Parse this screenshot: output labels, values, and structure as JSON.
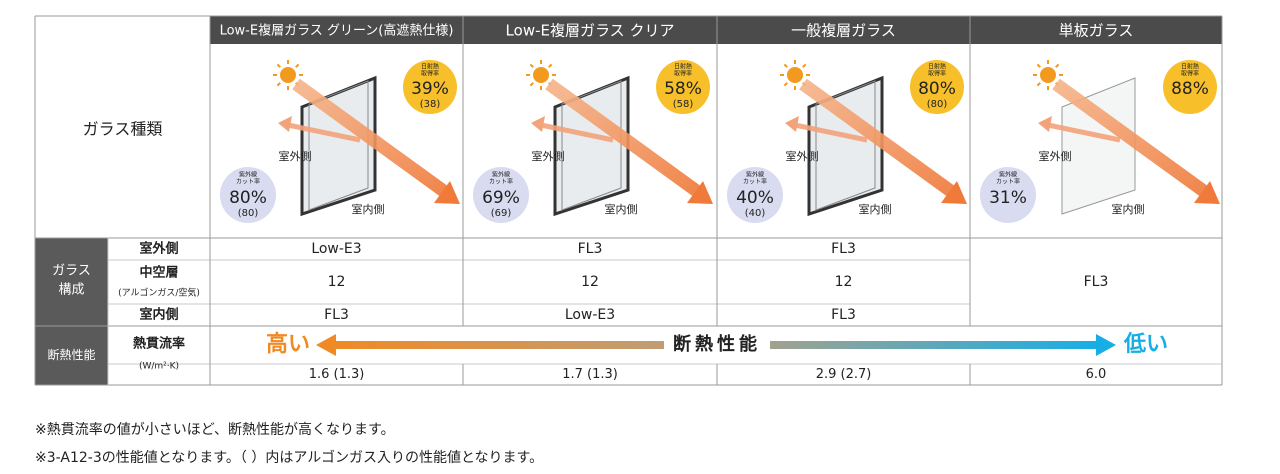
{
  "header": {
    "columns": [
      "Low-E複層ガラス グリーン(高遮熱仕様)",
      "Low-E複層ガラス クリア",
      "一般複層ガラス",
      "単板ガラス"
    ]
  },
  "glass_type": {
    "label": "ガラス種類",
    "illustrations": [
      {
        "solar_label": [
          "日射熱",
          "取得率"
        ],
        "solar": "39%",
        "solar_sub": "(38)",
        "uv_label": [
          "紫外線",
          "カット率"
        ],
        "uv": "80%",
        "uv_sub": "(80)",
        "outside": "室外側",
        "inside": "室内側"
      },
      {
        "solar_label": [
          "日射熱",
          "取得率"
        ],
        "solar": "58%",
        "solar_sub": "(58)",
        "uv_label": [
          "紫外線",
          "カット率"
        ],
        "uv": "69%",
        "uv_sub": "(69)",
        "outside": "室外側",
        "inside": "室内側"
      },
      {
        "solar_label": [
          "日射熱",
          "取得率"
        ],
        "solar": "80%",
        "solar_sub": "(80)",
        "uv_label": [
          "紫外線",
          "カット率"
        ],
        "uv": "40%",
        "uv_sub": "(40)",
        "outside": "室外側",
        "inside": "室内側"
      },
      {
        "solar_label": [
          "日射熱",
          "取得率"
        ],
        "solar": "88%",
        "uv_label": [
          "紫外線",
          "カット率"
        ],
        "uv": "31%",
        "outside": "室外側",
        "inside": "室内側"
      }
    ]
  },
  "composition": {
    "label": [
      "ガラス",
      "構成"
    ],
    "rows": [
      {
        "label": [
          "室外側"
        ],
        "values": [
          "Low-E3",
          "FL3",
          "FL3"
        ]
      },
      {
        "label": [
          "中空層",
          "(アルゴンガス/空気)"
        ],
        "values": [
          "12",
          "12",
          "12"
        ]
      },
      {
        "label": [
          "室内側"
        ],
        "values": [
          "FL3",
          "Low-E3",
          "FL3"
        ]
      }
    ],
    "single": "FL3"
  },
  "performance": {
    "label": "断熱性能",
    "metric": [
      "熱貫流率",
      "(W/m²·K)"
    ],
    "scale": {
      "high": "高い",
      "title": "断熱性能",
      "low": "低い"
    },
    "values": [
      "1.6 (1.3)",
      "1.7 (1.3)",
      "2.9 (2.7)",
      "6.0"
    ]
  },
  "notes": [
    "※熱貫流率の値が小さいほど、断熱性能が高くなります。",
    "※3-A12-3の性能値となります。（ ）内はアルゴンガス入りの性能値となります。"
  ]
}
